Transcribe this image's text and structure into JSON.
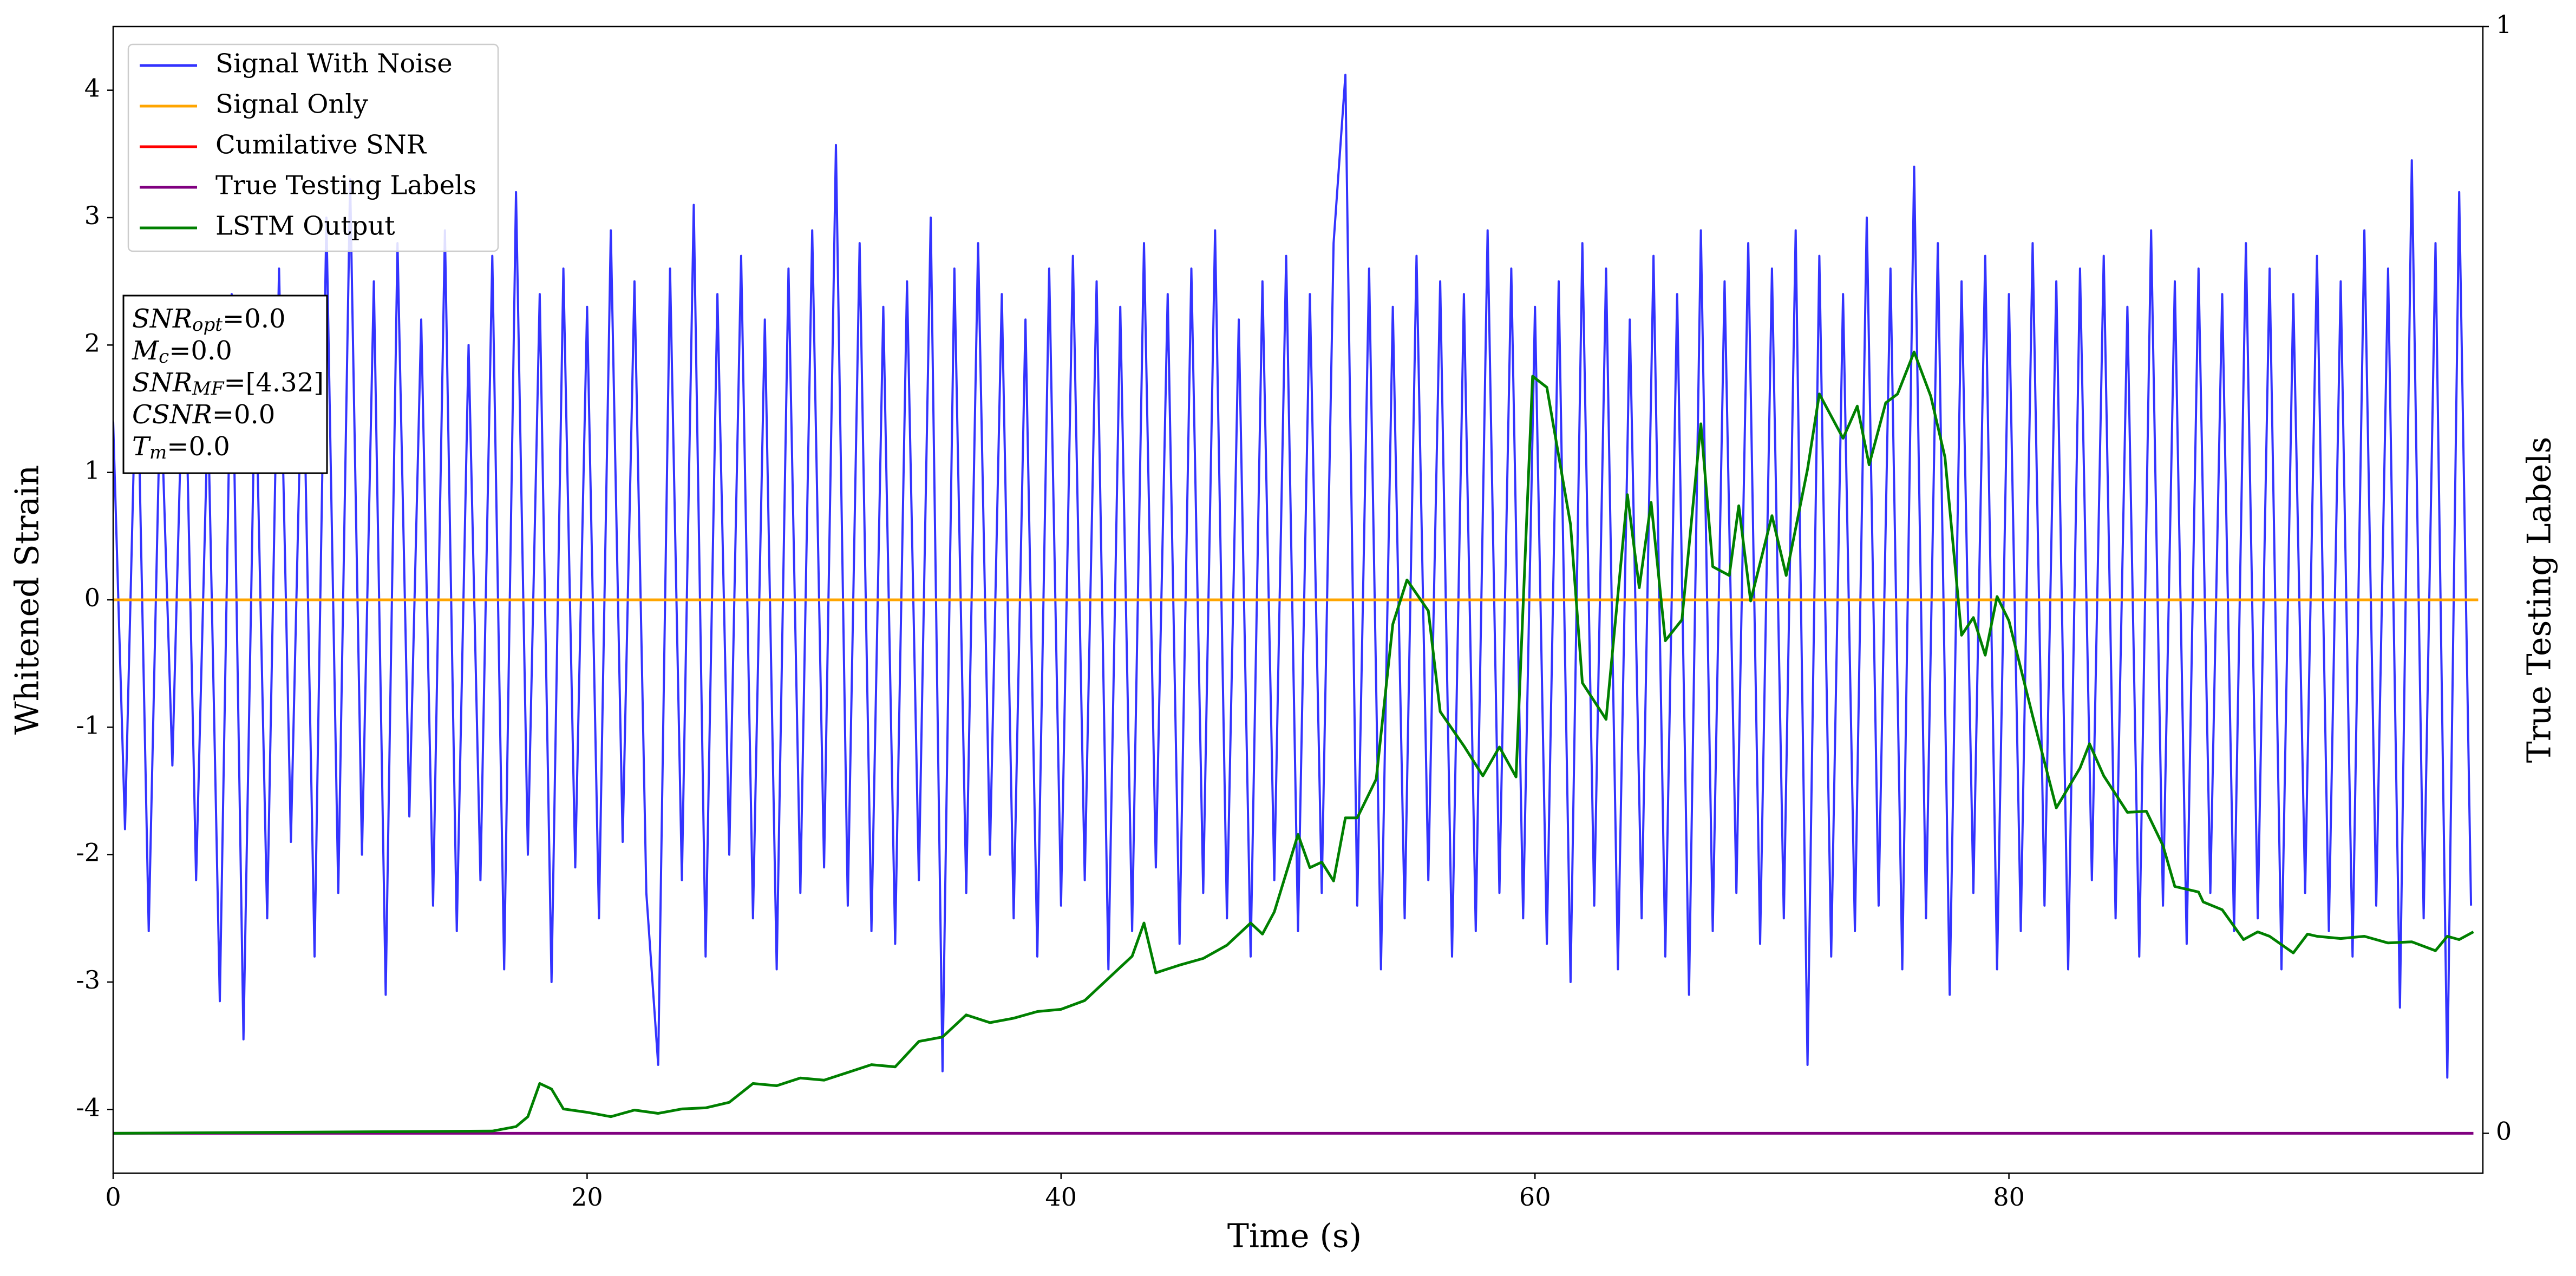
{
  "chart_data": {
    "type": "line",
    "xlabel": "Time (s)",
    "ylabel": "Whitened Strain",
    "y2label": "True Testing Labels",
    "xlim": [
      0,
      100
    ],
    "xticks": [
      0,
      20,
      40,
      60,
      80
    ],
    "ylim": [
      -4.5,
      4.5
    ],
    "yticks": [
      -4,
      -3,
      -2,
      -1,
      0,
      1,
      2,
      3,
      4
    ],
    "y2lim": [
      -0.036,
      1
    ],
    "y2ticks": [
      0,
      1
    ],
    "legend": "upper left",
    "annotation": [
      {
        "symbol": "SNR",
        "sub": "opt",
        "rest": "=0.0"
      },
      {
        "symbol": "M",
        "sub": "c",
        "rest": "=0.0"
      },
      {
        "symbol": "SNR",
        "sub": "MF",
        "rest": "=[4.32]"
      },
      {
        "symbol": "CSNR",
        "rest": "=0.0"
      },
      {
        "symbol": "T",
        "sub": "m",
        "rest": "=0.0"
      }
    ],
    "series": [
      {
        "name": "Signal With Noise",
        "color": "#3333ff",
        "x": [
          0,
          0.5,
          1,
          1.5,
          2,
          2.5,
          3,
          3.5,
          4,
          4.5,
          5,
          5.5,
          6,
          6.5,
          7,
          7.5,
          8,
          8.5,
          9,
          9.5,
          10,
          10.5,
          11,
          11.5,
          12,
          12.5,
          13,
          13.5,
          14,
          14.5,
          15,
          15.5,
          16,
          16.5,
          17,
          17.5,
          18,
          18.5,
          19,
          19.5,
          20,
          20.5,
          21,
          21.5,
          22,
          22.5,
          23,
          23.5,
          24,
          24.5,
          25,
          25.5,
          26,
          26.5,
          27,
          27.5,
          28,
          28.5,
          29,
          29.5,
          30,
          30.5,
          31,
          31.5,
          32,
          32.5,
          33,
          33.5,
          34,
          34.5,
          35,
          35.5,
          36,
          36.5,
          37,
          37.5,
          38,
          38.5,
          39,
          39.5,
          40,
          40.5,
          41,
          41.5,
          42,
          42.5,
          43,
          43.5,
          44,
          44.5,
          45,
          45.5,
          46,
          46.5,
          47,
          47.5,
          48,
          48.5,
          49,
          49.5,
          50,
          50.5,
          51,
          51.5,
          52,
          52.5,
          53,
          53.5,
          54,
          54.5,
          55,
          55.5,
          56,
          56.5,
          57,
          57.5,
          58,
          58.5,
          59,
          59.5,
          60,
          60.5,
          61,
          61.5,
          62,
          62.5,
          63,
          63.5,
          64,
          64.5,
          65,
          65.5,
          66,
          66.5,
          67,
          67.5,
          68,
          68.5,
          69,
          69.5,
          70,
          70.5,
          71,
          71.5,
          72,
          72.5,
          73,
          73.5,
          74,
          74.5,
          75,
          75.5,
          76,
          76.5,
          77,
          77.5,
          78,
          78.5,
          79,
          79.5,
          80,
          80.5,
          81,
          81.5,
          82,
          82.5,
          83,
          83.5,
          84,
          84.5,
          85,
          85.5,
          86,
          86.5,
          87,
          87.5,
          88,
          88.5,
          89,
          89.5,
          90,
          90.5,
          91,
          91.5,
          92,
          92.5,
          93,
          93.5,
          94,
          94.5,
          95,
          95.5,
          96,
          96.5,
          97,
          97.5,
          98,
          98.5,
          99,
          99.5
        ],
        "values": [
          1.4,
          -1.8,
          2.1,
          -2.6,
          1.7,
          -1.3,
          2.3,
          -2.2,
          1.5,
          -3.15,
          2.4,
          -3.45,
          1.9,
          -2.5,
          2.6,
          -1.9,
          2.2,
          -2.8,
          3.0,
          -2.3,
          3.3,
          -2.0,
          2.5,
          -3.1,
          2.8,
          -1.7,
          2.2,
          -2.4,
          2.9,
          -2.6,
          2.0,
          -2.2,
          2.7,
          -2.9,
          3.2,
          -2.0,
          2.4,
          -3.0,
          2.6,
          -2.1,
          2.3,
          -2.5,
          2.9,
          -1.9,
          2.5,
          -2.3,
          -3.65,
          2.6,
          -2.2,
          3.1,
          -2.8,
          2.4,
          -2.0,
          2.7,
          -2.5,
          2.2,
          -2.9,
          2.6,
          -2.3,
          2.9,
          -2.1,
          3.57,
          -2.4,
          2.8,
          -2.6,
          2.3,
          -2.7,
          2.5,
          -2.2,
          3.0,
          -3.7,
          2.6,
          -2.3,
          2.8,
          -2.0,
          2.4,
          -2.5,
          2.2,
          -2.8,
          2.6,
          -2.4,
          2.7,
          -2.2,
          2.5,
          -2.9,
          2.3,
          -2.6,
          2.8,
          -2.1,
          2.4,
          -2.7,
          2.6,
          -2.3,
          2.9,
          -2.5,
          2.2,
          -2.8,
          2.5,
          -2.2,
          2.7,
          -2.6,
          2.4,
          -2.3,
          2.8,
          4.12,
          -2.4,
          2.6,
          -2.9,
          2.3,
          -2.5,
          2.7,
          -2.2,
          2.5,
          -2.8,
          2.4,
          -2.6,
          2.9,
          -2.3,
          2.6,
          -2.5,
          2.3,
          -2.7,
          2.5,
          -3.0,
          2.8,
          -2.4,
          2.6,
          -2.9,
          2.2,
          -2.5,
          2.7,
          -2.8,
          2.4,
          -3.1,
          2.9,
          -2.6,
          2.5,
          -2.3,
          2.8,
          -2.7,
          2.6,
          -2.5,
          2.9,
          -3.65,
          2.7,
          -2.8,
          2.4,
          -2.6,
          3.0,
          -2.4,
          2.6,
          -2.9,
          3.4,
          -2.5,
          2.8,
          -3.1,
          2.5,
          -2.3,
          2.7,
          -2.9,
          2.4,
          -2.6,
          2.8,
          -2.4,
          2.5,
          -2.9,
          2.6,
          -2.2,
          2.7,
          -2.5,
          2.3,
          -2.8,
          2.9,
          -2.4,
          2.5,
          -2.7,
          2.6,
          -2.3,
          2.4,
          -2.6,
          2.8,
          -2.5,
          2.6,
          -2.9,
          2.4,
          -2.3,
          2.7,
          -2.6,
          2.5,
          -2.8,
          2.9,
          -2.4,
          2.6,
          -3.2,
          3.45,
          -2.5,
          2.8,
          -3.75,
          3.2,
          -2.4
        ]
      },
      {
        "name": "Signal Only",
        "color": "#ffa500",
        "x": [
          0,
          99.8
        ],
        "values": [
          0,
          0
        ]
      },
      {
        "name": "Cumilative SNR",
        "color": "#ff0000",
        "x": [
          0,
          99.8
        ],
        "values": [
          0,
          0
        ]
      },
      {
        "name": "True Testing Labels",
        "color": "#800080",
        "axis": "y2",
        "x": [
          0,
          99.6
        ],
        "values": [
          0,
          0
        ]
      },
      {
        "name": "LSTM Output",
        "color": "#008000",
        "axis": "y2",
        "x": [
          0,
          16,
          17,
          17.5,
          18,
          18.5,
          19,
          20,
          21,
          22,
          23,
          24,
          25,
          26,
          27,
          28,
          29,
          30,
          31,
          32,
          33,
          34,
          35,
          36,
          37,
          38,
          39,
          40,
          41,
          42,
          43,
          43.5,
          44,
          45,
          46,
          47,
          48,
          48.5,
          49,
          50,
          50.5,
          51,
          51.5,
          52,
          52.5,
          53.3,
          54,
          54.6,
          55.5,
          56,
          57,
          57.8,
          58.5,
          59.2,
          59.9,
          60.5,
          61.5,
          62,
          63,
          63.9,
          64.4,
          64.9,
          65.5,
          66.2,
          67,
          67.5,
          68.2,
          68.6,
          69.1,
          70,
          70.6,
          71.5,
          72,
          73,
          73.6,
          74.1,
          74.8,
          75.3,
          76,
          76.7,
          77.3,
          78,
          78.5,
          79,
          79.5,
          80,
          81,
          82,
          83,
          83.4,
          84,
          85,
          85.8,
          86.5,
          87,
          88,
          88.2,
          89,
          89.9,
          90.5,
          91,
          92,
          92.6,
          93,
          94,
          95,
          96,
          97,
          98,
          98.5,
          99,
          99.6
        ],
        "values": [
          0,
          0.002,
          0.006,
          0.015,
          0.045,
          0.04,
          0.022,
          0.019,
          0.015,
          0.021,
          0.018,
          0.022,
          0.023,
          0.028,
          0.045,
          0.043,
          0.05,
          0.048,
          0.055,
          0.062,
          0.06,
          0.083,
          0.087,
          0.107,
          0.1,
          0.104,
          0.11,
          0.112,
          0.12,
          0.14,
          0.16,
          0.19,
          0.145,
          0.152,
          0.158,
          0.17,
          0.19,
          0.18,
          0.2,
          0.27,
          0.24,
          0.245,
          0.228,
          0.285,
          0.285,
          0.32,
          0.46,
          0.5,
          0.472,
          0.381,
          0.35,
          0.323,
          0.349,
          0.322,
          0.684,
          0.674,
          0.55,
          0.407,
          0.374,
          0.577,
          0.493,
          0.57,
          0.445,
          0.464,
          0.641,
          0.512,
          0.504,
          0.567,
          0.481,
          0.558,
          0.504,
          0.6,
          0.668,
          0.628,
          0.657,
          0.604,
          0.66,
          0.668,
          0.706,
          0.666,
          0.611,
          0.45,
          0.466,
          0.432,
          0.485,
          0.463,
          0.377,
          0.294,
          0.33,
          0.352,
          0.323,
          0.29,
          0.291,
          0.26,
          0.223,
          0.218,
          0.209,
          0.202,
          0.175,
          0.182,
          0.178,
          0.163,
          0.18,
          0.178,
          0.176,
          0.178,
          0.172,
          0.173,
          0.165,
          0.178,
          0.175,
          0.182
        ]
      }
    ]
  }
}
